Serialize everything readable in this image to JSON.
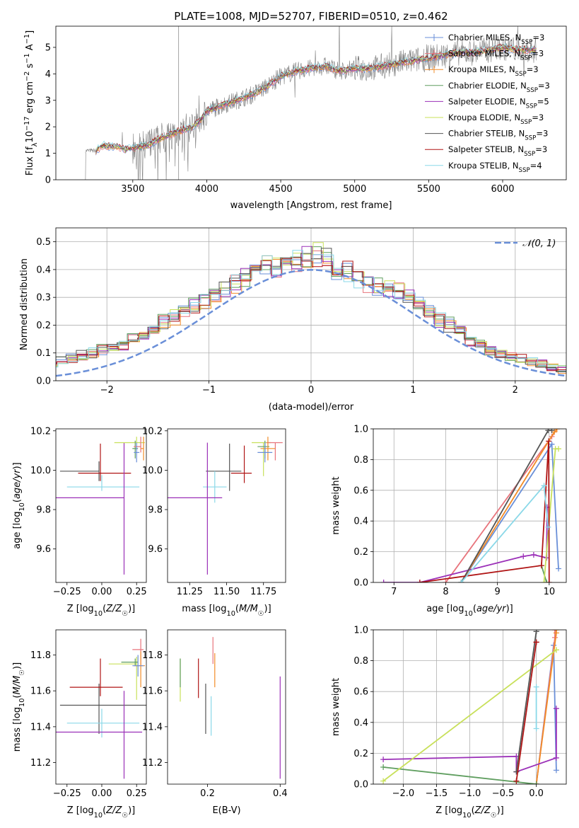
{
  "figure_title": "PLATE=1008, MJD=52707, FIBERID=0510, z=0.462",
  "colors": {
    "chabrier_miles": "#6a8fd8",
    "salpeter_miles": "#e8747c",
    "kroupa_miles": "#f28c28",
    "chabrier_elodie": "#5f9e5f",
    "salpeter_elodie": "#9b30b8",
    "kroupa_elodie": "#c8e05a",
    "chabrier_stelib": "#555555",
    "salpeter_stelib": "#b01515",
    "kroupa_stelib": "#8ad8e8",
    "data": "#808080",
    "normal": "#6a8fd8"
  },
  "chart_data": [
    {
      "id": "spectrum",
      "type": "line",
      "xlabel": "wavelength [Angstrom, rest frame]",
      "ylabel": "Flux [f_λ 10^-17 erg cm^-2 s^-1 A^-1]",
      "xlim": [
        2980,
        6430
      ],
      "ylim": [
        0,
        5.8
      ],
      "xticks": [
        3500,
        4000,
        4500,
        5000,
        5500,
        6000
      ],
      "yticks": [
        0,
        1,
        2,
        3,
        4,
        5
      ],
      "legend_position": "upper right",
      "legend": [
        {
          "key": "chabrier_miles",
          "label": "Chabrier MILES, N_SSP=3",
          "marker": "+"
        },
        {
          "key": "salpeter_miles",
          "label": "Salpeter MILES, N_SSP=3",
          "marker": "+"
        },
        {
          "key": "kroupa_miles",
          "label": "Kroupa MILES, N_SSP=3",
          "marker": "+"
        },
        {
          "key": "chabrier_elodie",
          "label": "Chabrier ELODIE, N_SSP=3",
          "marker": ""
        },
        {
          "key": "salpeter_elodie",
          "label": "Salpeter ELODIE, N_SSP=5",
          "marker": ""
        },
        {
          "key": "kroupa_elodie",
          "label": "Kroupa ELODIE, N_SSP=3",
          "marker": ""
        },
        {
          "key": "chabrier_stelib",
          "label": "Chabrier STELIB, N_SSP=3",
          "marker": ""
        },
        {
          "key": "salpeter_stelib",
          "label": "Salpeter STELIB, N_SSP=3",
          "marker": ""
        },
        {
          "key": "kroupa_stelib",
          "label": "Kroupa STELIB, N_SSP=4",
          "marker": ""
        }
      ],
      "model_continuum": {
        "x": [
          3250,
          3300,
          3350,
          3400,
          3450,
          3500,
          3600,
          3700,
          3800,
          3900,
          3950,
          4000,
          4100,
          4200,
          4300,
          4400,
          4500,
          4600,
          4700,
          4800,
          4900,
          5000,
          5100,
          5200,
          5300,
          5400,
          5500,
          5600,
          5700,
          5800,
          5900,
          6000,
          6100,
          6200
        ],
        "y": [
          1.1,
          1.3,
          1.25,
          1.25,
          1.15,
          1.2,
          1.3,
          1.6,
          1.8,
          2.0,
          2.2,
          2.6,
          2.8,
          3.0,
          3.2,
          3.5,
          3.9,
          4.1,
          4.2,
          4.3,
          4.1,
          4.2,
          4.2,
          4.3,
          4.4,
          4.5,
          4.6,
          4.7,
          4.8,
          4.8,
          4.9,
          5.0,
          4.9,
          4.9
        ]
      }
    },
    {
      "id": "residuals",
      "type": "step",
      "xlabel": "(data-model)/error",
      "ylabel": "Normed distribution",
      "xlim": [
        -2.5,
        2.5
      ],
      "ylim": [
        0,
        0.55
      ],
      "xticks": [
        -2,
        -1,
        0,
        1,
        2
      ],
      "yticks": [
        0.0,
        0.1,
        0.2,
        0.3,
        0.4,
        0.5
      ],
      "grid": true,
      "legend_position": "upper right",
      "legend": [
        {
          "key": "normal",
          "label": "𝒩(0, 1)",
          "style": "dashed"
        }
      ],
      "bin_width": 0.1,
      "series_base": [
        0.02,
        0.02,
        0.02,
        0.03,
        0.03,
        0.04,
        0.04,
        0.05,
        0.05,
        0.06,
        0.07,
        0.08,
        0.09,
        0.1,
        0.11,
        0.12,
        0.13,
        0.15,
        0.17,
        0.19,
        0.21,
        0.23,
        0.25,
        0.27,
        0.29,
        0.31,
        0.33,
        0.35,
        0.37,
        0.4,
        0.42,
        0.4,
        0.41,
        0.43,
        0.44,
        0.45,
        0.44,
        0.41,
        0.39,
        0.37,
        0.35,
        0.34,
        0.33,
        0.32,
        0.3,
        0.28,
        0.25,
        0.22,
        0.2,
        0.18,
        0.15,
        0.13,
        0.11,
        0.1,
        0.09,
        0.08,
        0.07,
        0.06,
        0.05,
        0.04,
        0.04,
        0.03,
        0.03,
        0.02,
        0.02,
        0.02,
        0.02,
        0.02,
        0.02,
        0.02
      ]
    },
    {
      "id": "age_vs_Z",
      "type": "errorbar",
      "xlabel": "Z [log10(Z/Z☉)]",
      "ylabel": "age [log10(age/yr)]",
      "xlim": [
        -0.33,
        0.32
      ],
      "ylim": [
        9.43,
        10.21
      ],
      "xticks": [
        -0.25,
        0.0,
        0.25
      ],
      "yticks": [
        9.6,
        9.8,
        10.0,
        10.2
      ],
      "points": [
        {
          "key": "chabrier_stelib",
          "x": -0.02,
          "xerr": [
            0.28,
            0.0
          ],
          "y": 9.995,
          "yerr": [
            0.05,
            0.05
          ]
        },
        {
          "key": "salpeter_stelib",
          "x": -0.01,
          "xerr": [
            0.16,
            0.22
          ],
          "y": 9.985,
          "yerr": [
            0.04,
            0.15
          ]
        },
        {
          "key": "kroupa_stelib",
          "x": 0.0,
          "xerr": [
            0.25,
            0.27
          ],
          "y": 9.915,
          "yerr": [
            0.02,
            0.06
          ]
        },
        {
          "key": "salpeter_elodie",
          "x": 0.16,
          "xerr": [
            0.6,
            0.0
          ],
          "y": 9.86,
          "yerr": [
            0.39,
            0.28
          ]
        },
        {
          "key": "kroupa_elodie",
          "x": 0.25,
          "xerr": [
            0.16,
            0.06
          ],
          "y": 10.14,
          "yerr": [
            0.0,
            0.03
          ]
        },
        {
          "key": "chabrier_elodie",
          "x": 0.24,
          "xerr": [
            0.02,
            0.02
          ],
          "y": 10.11,
          "yerr": [
            0.05,
            0.04
          ]
        },
        {
          "key": "salpeter_miles",
          "x": 0.28,
          "xerr": [
            0.05,
            0.0
          ],
          "y": 10.12,
          "yerr": [
            0.03,
            0.05
          ]
        },
        {
          "key": "kroupa_miles",
          "x": 0.3,
          "xerr": [
            0.02,
            0.0
          ],
          "y": 10.11,
          "yerr": [
            0.06,
            0.06
          ]
        },
        {
          "key": "chabrier_miles",
          "x": 0.25,
          "xerr": [
            0.02,
            0.02
          ],
          "y": 10.09,
          "yerr": [
            0.05,
            0.05
          ]
        }
      ]
    },
    {
      "id": "age_vs_mass",
      "type": "errorbar",
      "xlabel": "mass [log10(M/M☉)]",
      "ylabel": "",
      "xlim": [
        11.1,
        11.9
      ],
      "ylim": [
        9.43,
        10.21
      ],
      "xticks": [
        11.25,
        11.5,
        11.75
      ],
      "yticks": [
        9.6,
        9.8,
        10.0,
        10.2
      ],
      "xticklabels": [
        "11.25",
        "11.50",
        "11.75"
      ],
      "points": [
        {
          "key": "chabrier_stelib",
          "x": 11.52,
          "xerr": [
            0.16,
            0.08
          ],
          "y": 9.995,
          "yerr": [
            0.1,
            0.14
          ]
        },
        {
          "key": "salpeter_stelib",
          "x": 11.62,
          "xerr": [
            0.09,
            0.05
          ],
          "y": 9.985,
          "yerr": [
            0.05,
            0.14
          ]
        },
        {
          "key": "kroupa_stelib",
          "x": 11.42,
          "xerr": [
            0.08,
            0.08
          ],
          "y": 9.915,
          "yerr": [
            0.08,
            0.08
          ]
        },
        {
          "key": "salpeter_elodie",
          "x": 11.37,
          "xerr": [
            0.3,
            0.1
          ],
          "y": 9.86,
          "yerr": [
            0.39,
            0.28
          ]
        },
        {
          "key": "kroupa_elodie",
          "x": 11.75,
          "xerr": [
            0.08,
            0.05
          ],
          "y": 10.14,
          "yerr": [
            0.17,
            0.0
          ]
        },
        {
          "key": "chabrier_elodie",
          "x": 11.76,
          "xerr": [
            0.05,
            0.03
          ],
          "y": 10.12,
          "yerr": [
            0.06,
            0.03
          ]
        },
        {
          "key": "salpeter_miles",
          "x": 11.83,
          "xerr": [
            0.06,
            0.05
          ],
          "y": 10.14,
          "yerr": [
            0.09,
            0.0
          ]
        },
        {
          "key": "kroupa_miles",
          "x": 11.78,
          "xerr": [
            0.05,
            0.05
          ],
          "y": 10.11,
          "yerr": [
            0.06,
            0.06
          ]
        },
        {
          "key": "chabrier_miles",
          "x": 11.76,
          "xerr": [
            0.05,
            0.05
          ],
          "y": 10.09,
          "yerr": [
            0.05,
            0.05
          ]
        }
      ]
    },
    {
      "id": "massweight_vs_age",
      "type": "line",
      "xlabel": "age [log10(age/yr)]",
      "ylabel": "mass weight",
      "xlim": [
        6.6,
        10.33
      ],
      "ylim": [
        0,
        1.0
      ],
      "xticks": [
        7,
        8,
        9,
        10
      ],
      "yticks": [
        0.0,
        0.2,
        0.4,
        0.6,
        0.8,
        1.0
      ],
      "grid": true,
      "series": [
        {
          "key": "chabrier_miles",
          "x": [
            8.3,
            10.05,
            10.18
          ],
          "y": [
            0.0,
            0.9,
            0.09
          ]
        },
        {
          "key": "salpeter_miles",
          "x": [
            8.0,
            10.05,
            10.15
          ],
          "y": [
            0.0,
            0.95,
            1.0
          ]
        },
        {
          "key": "kroupa_miles",
          "x": [
            8.3,
            10.1,
            10.15
          ],
          "y": [
            0.0,
            0.98,
            1.0
          ]
        },
        {
          "key": "chabrier_elodie",
          "x": [
            9.85,
            9.95
          ],
          "y": [
            0.11,
            0.0
          ]
        },
        {
          "key": "salpeter_elodie",
          "x": [
            6.8,
            7.5,
            9.5,
            9.7,
            9.95,
            9.96
          ],
          "y": [
            0.0,
            0.0,
            0.17,
            0.18,
            0.16,
            0.49
          ]
        },
        {
          "key": "kroupa_elodie",
          "x": [
            9.9,
            10.12,
            10.18
          ],
          "y": [
            0.0,
            0.87,
            0.87
          ]
        },
        {
          "key": "chabrier_stelib",
          "x": [
            8.3,
            9.98,
            10.05
          ],
          "y": [
            0.0,
            0.99,
            0.99
          ]
        },
        {
          "key": "salpeter_stelib",
          "x": [
            7.5,
            9.85,
            9.99,
            10.0
          ],
          "y": [
            0.0,
            0.11,
            0.92,
            0.0
          ]
        },
        {
          "key": "kroupa_stelib",
          "x": [
            8.3,
            9.9,
            9.98
          ],
          "y": [
            0.0,
            0.63,
            0.36
          ]
        }
      ]
    },
    {
      "id": "mass_vs_Z",
      "type": "errorbar",
      "xlabel": "Z [log10(Z/Z☉)]",
      "ylabel": "mass [log10(M/M☉)]",
      "xlim": [
        -0.33,
        0.32
      ],
      "ylim": [
        11.08,
        11.94
      ],
      "xticks": [
        -0.25,
        0.0,
        0.25
      ],
      "yticks": [
        11.2,
        11.4,
        11.6,
        11.8
      ],
      "points": [
        {
          "key": "chabrier_stelib",
          "x": -0.02,
          "xerr": [
            0.28,
            0.41
          ],
          "y": 11.52,
          "yerr": [
            0.16,
            0.12
          ]
        },
        {
          "key": "salpeter_stelib",
          "x": -0.01,
          "xerr": [
            0.22,
            0.16
          ],
          "y": 11.62,
          "yerr": [
            0.05,
            0.16
          ]
        },
        {
          "key": "kroupa_stelib",
          "x": 0.0,
          "xerr": [
            0.25,
            0.27
          ],
          "y": 11.42,
          "yerr": [
            0.08,
            0.08
          ]
        },
        {
          "key": "salpeter_elodie",
          "x": 0.16,
          "xerr": [
            0.6,
            0.13
          ],
          "y": 11.37,
          "yerr": [
            0.26,
            0.23
          ]
        },
        {
          "key": "kroupa_elodie",
          "x": 0.25,
          "xerr": [
            0.2,
            0.0
          ],
          "y": 11.75,
          "yerr": [
            0.2,
            0.04
          ]
        },
        {
          "key": "chabrier_elodie",
          "x": 0.24,
          "xerr": [
            0.1,
            0.02
          ],
          "y": 11.76,
          "yerr": [
            0.02,
            0.02
          ]
        },
        {
          "key": "salpeter_miles",
          "x": 0.28,
          "xerr": [
            0.06,
            0.02
          ],
          "y": 11.83,
          "yerr": [
            0.09,
            0.06
          ]
        },
        {
          "key": "kroupa_miles",
          "x": 0.28,
          "xerr": [
            0.05,
            0.03
          ],
          "y": 11.74,
          "yerr": [
            0.12,
            0.08
          ]
        },
        {
          "key": "chabrier_miles",
          "x": 0.26,
          "xerr": [
            0.04,
            0.04
          ],
          "y": 11.74,
          "yerr": [
            0.06,
            0.06
          ]
        }
      ]
    },
    {
      "id": "mass_vs_ebv",
      "type": "errorbar",
      "xlabel": "E(B-V)",
      "ylabel": "",
      "xlim": [
        0.09,
        0.415
      ],
      "ylim": [
        11.08,
        11.94
      ],
      "xticks": [
        0.2,
        0.4
      ],
      "yticks": [
        11.2,
        11.4,
        11.6,
        11.8
      ],
      "points": [
        {
          "key": "kroupa_elodie",
          "x": 0.125,
          "xerr": [
            0,
            0
          ],
          "y": 11.66,
          "yerr": [
            0.12,
            0.12
          ]
        },
        {
          "key": "chabrier_elodie",
          "x": 0.125,
          "xerr": [
            0,
            0
          ],
          "y": 11.7,
          "yerr": [
            0.08,
            0.08
          ]
        },
        {
          "key": "salpeter_stelib",
          "x": 0.175,
          "xerr": [
            0,
            0
          ],
          "y": 11.62,
          "yerr": [
            0.06,
            0.16
          ]
        },
        {
          "key": "chabrier_stelib",
          "x": 0.195,
          "xerr": [
            0,
            0
          ],
          "y": 11.52,
          "yerr": [
            0.16,
            0.12
          ]
        },
        {
          "key": "kroupa_stelib",
          "x": 0.21,
          "xerr": [
            0,
            0
          ],
          "y": 11.47,
          "yerr": [
            0.12,
            0.1
          ]
        },
        {
          "key": "salpeter_miles",
          "x": 0.215,
          "xerr": [
            0,
            0
          ],
          "y": 11.83,
          "yerr": [
            0.08,
            0.07
          ]
        },
        {
          "key": "kroupa_miles",
          "x": 0.22,
          "xerr": [
            0,
            0
          ],
          "y": 11.75,
          "yerr": [
            0.13,
            0.06
          ]
        },
        {
          "key": "salpeter_elodie",
          "x": 0.4,
          "xerr": [
            0,
            0
          ],
          "y": 11.4,
          "yerr": [
            0.29,
            0.28
          ]
        }
      ]
    },
    {
      "id": "massweight_vs_Z",
      "type": "line",
      "xlabel": "Z [log10(Z/Z☉)]",
      "ylabel": "mass weight",
      "xlim": [
        -2.45,
        0.45
      ],
      "ylim": [
        0,
        1.0
      ],
      "xticks": [
        -2.0,
        -1.5,
        -1.0,
        -0.5,
        0.0
      ],
      "yticks": [
        0.0,
        0.2,
        0.4,
        0.6,
        0.8,
        1.0
      ],
      "grid": true,
      "series": [
        {
          "key": "chabrier_miles",
          "x": [
            0.0,
            0.26,
            0.3
          ],
          "y": [
            0.0,
            0.9,
            0.09
          ]
        },
        {
          "key": "salpeter_miles",
          "x": [
            0.0,
            0.28,
            0.28
          ],
          "y": [
            0.0,
            0.95,
            1.0
          ]
        },
        {
          "key": "kroupa_miles",
          "x": [
            0.0,
            0.3,
            0.3
          ],
          "y": [
            0.0,
            0.98,
            1.0
          ]
        },
        {
          "key": "chabrier_elodie",
          "x": [
            -2.3,
            0.0
          ],
          "y": [
            0.11,
            0.0
          ]
        },
        {
          "key": "salpeter_elodie",
          "x": [
            -2.3,
            -0.3,
            -0.3,
            0.3,
            0.3
          ],
          "y": [
            0.16,
            0.18,
            0.08,
            0.17,
            0.49
          ]
        },
        {
          "key": "kroupa_elodie",
          "x": [
            -2.3,
            0.3,
            0.3
          ],
          "y": [
            0.02,
            0.87,
            0.87
          ]
        },
        {
          "key": "chabrier_stelib",
          "x": [
            -0.3,
            0.0,
            0.0
          ],
          "y": [
            0.08,
            0.99,
            0.99
          ]
        },
        {
          "key": "salpeter_stelib",
          "x": [
            -0.3,
            0.0,
            0.0
          ],
          "y": [
            0.02,
            0.92,
            0.92
          ]
        },
        {
          "key": "kroupa_stelib",
          "x": [
            0.0,
            0.0
          ],
          "y": [
            0.36,
            0.63
          ]
        }
      ]
    }
  ]
}
